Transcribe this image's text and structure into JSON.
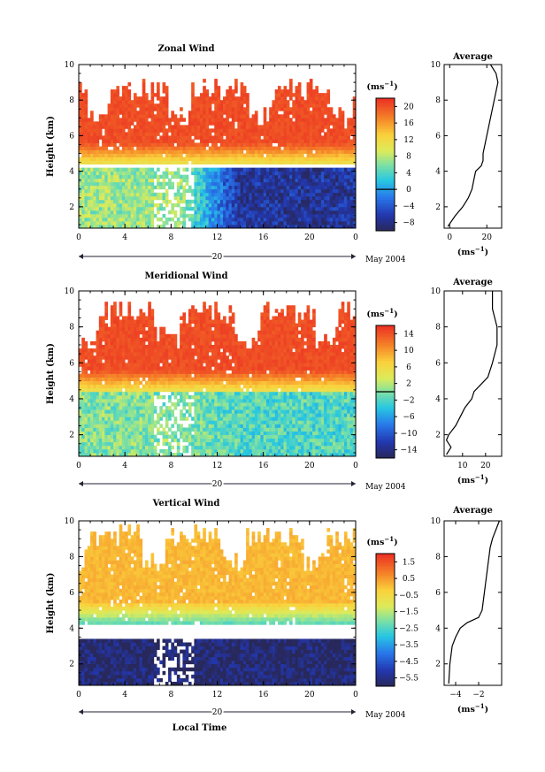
{
  "chart_data": [
    {
      "type": "heatmap",
      "title": "Zonal Wind",
      "ylabel": "Height (km)",
      "xlabel": "",
      "xticks": [
        "0",
        "4",
        "8",
        "12",
        "16",
        "20",
        "0"
      ],
      "yticks": [
        "2",
        "4",
        "6",
        "8",
        "10"
      ],
      "xlim": [
        0,
        24
      ],
      "ylim": [
        0.8,
        10
      ],
      "date_label": "20",
      "month_label": "May 2004",
      "colorbar": {
        "unit": "(ms",
        "unit_exp": "−1",
        "unit_close": ")",
        "ticks": [
          "20",
          "16",
          "12",
          "8",
          "4",
          "0",
          "−4",
          "−8"
        ],
        "range": [
          -10,
          22
        ],
        "zero_line": 0
      },
      "upper_band": {
        "gap_bottom_km": 4.4,
        "top_km": 9.3,
        "value": 21
      },
      "lower_band": {
        "top_km": 4.2,
        "value_morning": 7,
        "value_afternoon": -7
      },
      "average_profile": {
        "title": "Average",
        "xlabel": "(ms",
        "xlabel_exp": "−1",
        "xlabel_close": ")",
        "xticks": [
          "0",
          "20"
        ],
        "yticks": [
          "2",
          "4",
          "6",
          "8",
          "10"
        ],
        "xlim": [
          -3,
          28
        ],
        "height_km": [
          0.9,
          1.5,
          2.0,
          2.5,
          3.0,
          3.5,
          4.0,
          4.3,
          4.6,
          5.0,
          5.5,
          6.0,
          6.5,
          7.0,
          7.5,
          8.0,
          8.5,
          9.0,
          9.5,
          10.0
        ],
        "speed": [
          -1,
          3,
          7,
          10,
          12,
          13,
          14,
          17,
          18,
          18,
          19,
          20,
          21,
          22,
          23,
          24,
          25,
          26,
          25,
          22
        ]
      }
    },
    {
      "type": "heatmap",
      "title": "Meridional Wind",
      "ylabel": "Height (km)",
      "xlabel": "",
      "xticks": [
        "0",
        "4",
        "8",
        "12",
        "16",
        "20",
        "0"
      ],
      "yticks": [
        "2",
        "4",
        "6",
        "8",
        "10"
      ],
      "xlim": [
        0,
        24
      ],
      "ylim": [
        0.8,
        10
      ],
      "date_label": "20",
      "month_label": "May 2004",
      "colorbar": {
        "unit": "(ms",
        "unit_exp": "−1",
        "unit_close": ")",
        "ticks": [
          "14",
          "10",
          "6",
          "2",
          "−2",
          "−6",
          "−10",
          "−14"
        ],
        "range": [
          -16,
          16
        ],
        "zero_line": 0
      },
      "upper_band": {
        "gap_bottom_km": 4.4,
        "top_km": 9.5,
        "value": 15
      },
      "lower_band": {
        "top_km": 4.6,
        "value_morning": 0,
        "value_afternoon": -2
      },
      "average_profile": {
        "title": "Average",
        "xlabel": "(ms",
        "xlabel_exp": "−1",
        "xlabel_close": ")",
        "xticks": [
          "10",
          "20"
        ],
        "yticks": [
          "2",
          "4",
          "6",
          "8",
          "10"
        ],
        "xlim": [
          2,
          27
        ],
        "height_km": [
          0.9,
          1.3,
          1.7,
          2.0,
          2.5,
          3.0,
          3.5,
          4.0,
          4.4,
          4.8,
          5.2,
          5.6,
          6.0,
          6.5,
          7.0,
          7.5,
          8.0,
          8.5,
          9.0,
          9.5,
          10.0
        ],
        "speed": [
          3,
          5,
          3,
          4,
          7,
          9,
          11,
          14,
          15,
          18,
          21,
          22,
          23,
          24,
          25,
          25,
          25,
          24,
          23,
          23,
          23
        ]
      }
    },
    {
      "type": "heatmap",
      "title": "Vertical Wind",
      "ylabel": "Height (km)",
      "xlabel": "Local Time",
      "xticks": [
        "0",
        "4",
        "8",
        "12",
        "16",
        "20",
        "0"
      ],
      "yticks": [
        "2",
        "4",
        "6",
        "8",
        "10"
      ],
      "xlim": [
        0,
        24
      ],
      "ylim": [
        0.8,
        10
      ],
      "date_label": "20",
      "month_label": "May 2004",
      "colorbar": {
        "unit": "(ms",
        "unit_exp": "−1",
        "unit_close": ")",
        "ticks": [
          "1.5",
          "0.5",
          "−0.5",
          "−1.5",
          "−2.5",
          "−3.5",
          "−4.5",
          "−5.5"
        ],
        "range": [
          -6,
          2
        ],
        "zero_line": null
      },
      "upper_band": {
        "gap_bottom_km": 4.3,
        "top_km": 9.8,
        "value": 0.3
      },
      "lower_band": {
        "top_km": 3.5,
        "value_morning": -5.8,
        "value_afternoon": -5.8
      },
      "average_profile": {
        "title": "Average",
        "xlabel": "(ms",
        "xlabel_exp": "−1",
        "xlabel_close": ")",
        "xticks": [
          "−4",
          "−2"
        ],
        "yticks": [
          "2",
          "4",
          "6",
          "8",
          "10"
        ],
        "xlim": [
          -5,
          0
        ],
        "height_km": [
          0.9,
          2.0,
          3.0,
          3.5,
          4.0,
          4.3,
          4.6,
          5.0,
          5.5,
          6.0,
          6.5,
          7.0,
          7.5,
          8.0,
          8.5,
          9.0,
          9.5,
          10.0
        ],
        "speed": [
          -4.6,
          -4.5,
          -4.3,
          -4.0,
          -3.6,
          -3.0,
          -2.0,
          -1.7,
          -1.6,
          -1.5,
          -1.4,
          -1.3,
          -1.2,
          -1.1,
          -1.0,
          -0.8,
          -0.5,
          -0.2
        ]
      }
    }
  ]
}
